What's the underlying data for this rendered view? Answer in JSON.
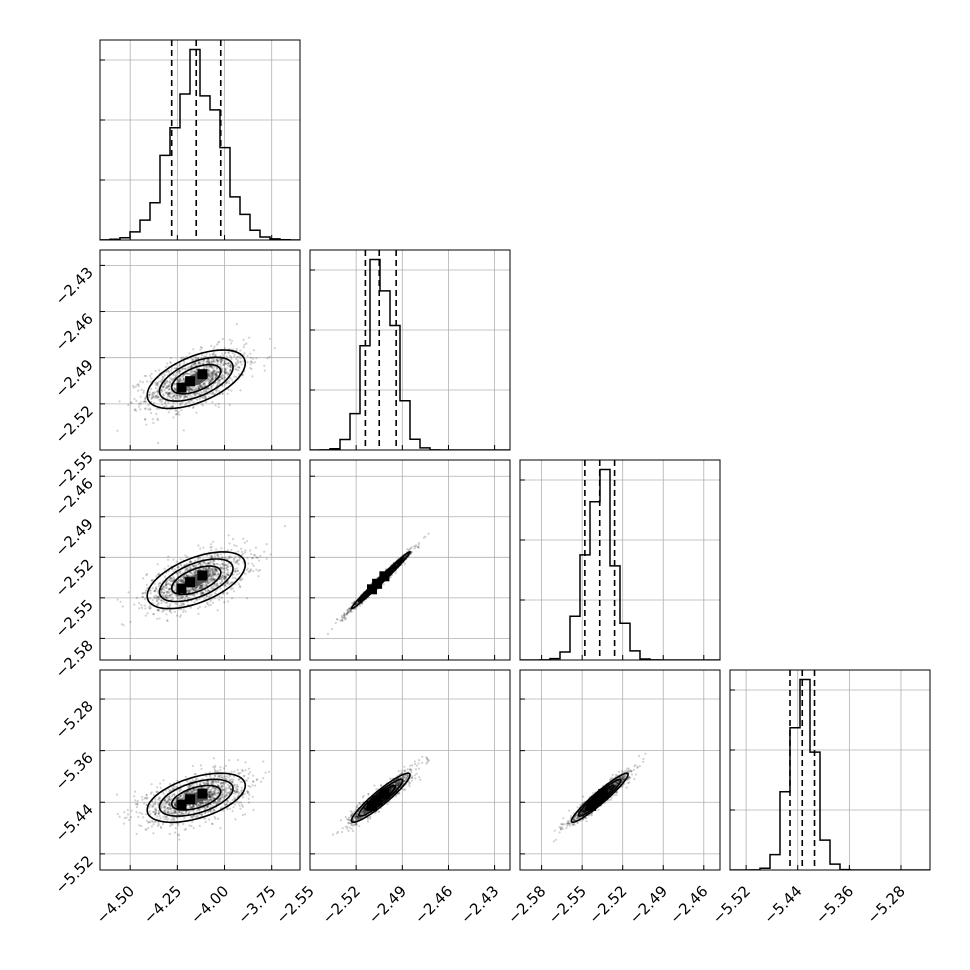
{
  "chart_data": {
    "type": "corner",
    "parameters": [
      {
        "index": 0,
        "range": [
          -4.66,
          -3.6
        ],
        "ticks": [
          "-4.50",
          "-4.25",
          "-4.00",
          "-3.75"
        ],
        "tick_values": [
          -4.5,
          -4.25,
          -4.0,
          -3.75
        ],
        "mean": -4.15,
        "sd": 0.13,
        "quantiles": [
          -4.28,
          -4.15,
          -4.02
        ]
      },
      {
        "index": 1,
        "range": [
          -2.55,
          -2.42
        ],
        "ticks": [
          "-2.55",
          "-2.52",
          "-2.49",
          "-2.46",
          "-2.43"
        ],
        "tick_values": [
          -2.55,
          -2.52,
          -2.49,
          -2.46,
          -2.43
        ],
        "mean": -2.504,
        "sd": 0.0095,
        "quantiles": [
          -2.514,
          -2.505,
          -2.494
        ]
      },
      {
        "index": 2,
        "range": [
          -2.596,
          -2.448
        ],
        "ticks": [
          "-2.58",
          "-2.55",
          "-2.52",
          "-2.49",
          "-2.46"
        ],
        "tick_values": [
          -2.58,
          -2.55,
          -2.52,
          -2.49,
          -2.46
        ],
        "mean": -2.537,
        "sd": 0.0105,
        "quantiles": [
          -2.548,
          -2.537,
          -2.526
        ]
      },
      {
        "index": 3,
        "range": [
          -5.545,
          -5.235
        ],
        "ticks": [
          "-5.52",
          "-5.44",
          "-5.36",
          "-5.28"
        ],
        "tick_values": [
          -5.52,
          -5.44,
          -5.36,
          -5.28
        ],
        "mean": -5.433,
        "sd": 0.019,
        "quantiles": [
          -5.452,
          -5.433,
          -5.414
        ]
      }
    ],
    "row_tick_labels": {
      "1": [
        "-2.43",
        "-2.46",
        "-2.49",
        "-2.52",
        "-2.55"
      ],
      "2": [
        "-2.46",
        "-2.49",
        "-2.52",
        "-2.55",
        "-2.58"
      ],
      "3": [
        "-5.28",
        "-5.36",
        "-5.44",
        "-5.52"
      ]
    },
    "correlations": {
      "1-0": 0.55,
      "2-0": 0.55,
      "2-1": 0.99,
      "3-0": 0.5,
      "3-1": 0.93,
      "3-2": 0.95
    },
    "histogram_bins": 20,
    "grid": true,
    "colors": {
      "points": "#000000",
      "lines": "#000000",
      "grid": "#b0b0b0"
    }
  }
}
